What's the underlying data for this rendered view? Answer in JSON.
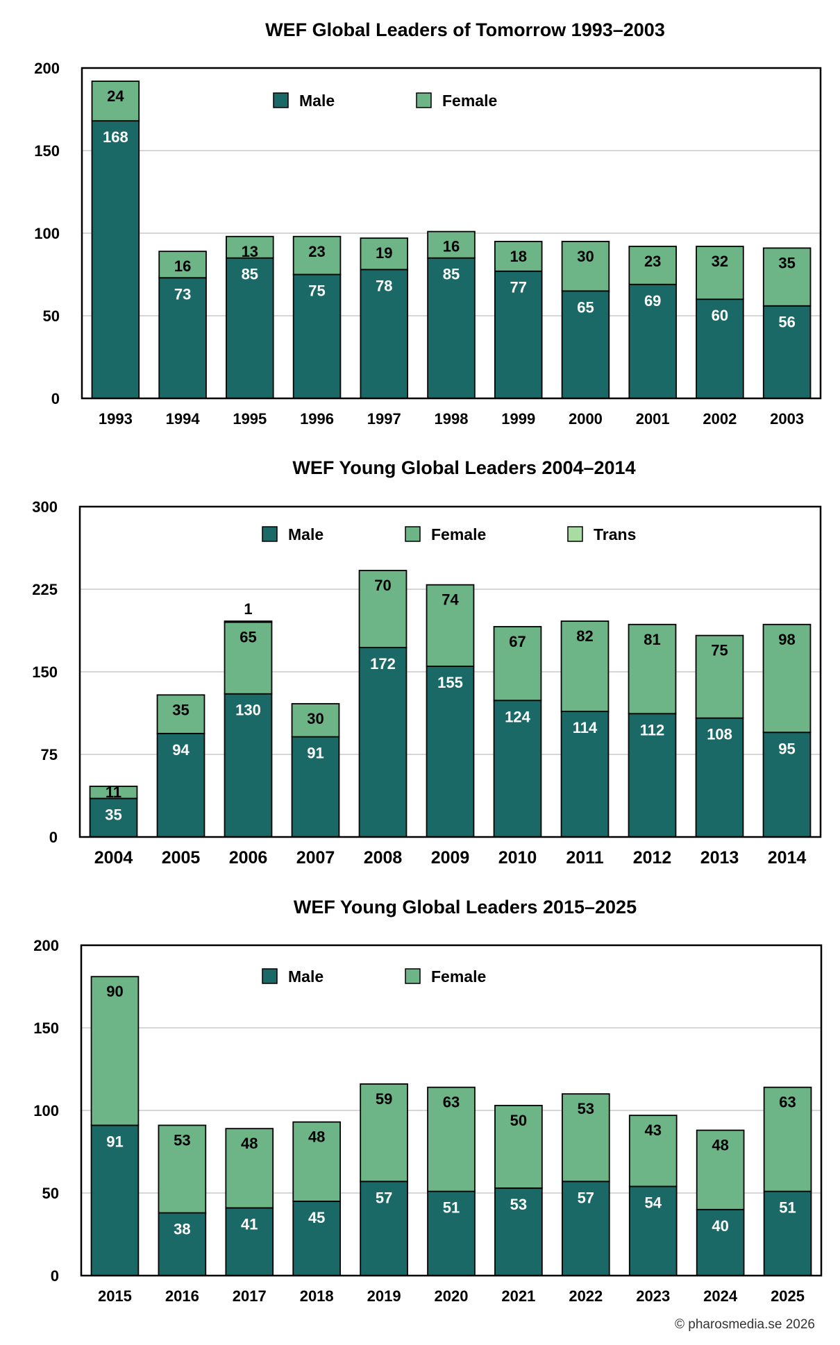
{
  "colors": {
    "male": "#1a6966",
    "female": "#6db586",
    "trans": "#a9dca3",
    "grid": "#c8c8c8",
    "frame": "#000000"
  },
  "chart_data": [
    {
      "type": "bar",
      "stacked": true,
      "title": "WEF Global Leaders of Tomorrow 1993–2003",
      "categories": [
        "1993",
        "1994",
        "1995",
        "1996",
        "1997",
        "1998",
        "1999",
        "2000",
        "2001",
        "2002",
        "2003"
      ],
      "series": [
        {
          "name": "Male",
          "color_key": "male",
          "values": [
            168,
            73,
            85,
            75,
            78,
            85,
            77,
            65,
            69,
            60,
            56
          ]
        },
        {
          "name": "Female",
          "color_key": "female",
          "values": [
            24,
            16,
            13,
            23,
            19,
            16,
            18,
            30,
            23,
            32,
            35
          ]
        }
      ],
      "ylim": [
        0,
        200
      ],
      "yticks": [
        0,
        50,
        100,
        150,
        200
      ],
      "grid": true,
      "legend": "top-center"
    },
    {
      "type": "bar",
      "stacked": true,
      "title": "WEF Young Global Leaders 2004–2014",
      "categories": [
        "2004",
        "2005",
        "2006",
        "2007",
        "2008",
        "2009",
        "2010",
        "2011",
        "2012",
        "2013",
        "2014"
      ],
      "series": [
        {
          "name": "Male",
          "color_key": "male",
          "values": [
            35,
            94,
            130,
            91,
            172,
            155,
            124,
            114,
            112,
            108,
            95
          ]
        },
        {
          "name": "Female",
          "color_key": "female",
          "values": [
            11,
            35,
            65,
            30,
            70,
            74,
            67,
            82,
            81,
            75,
            98
          ]
        },
        {
          "name": "Trans",
          "color_key": "trans",
          "values": [
            0,
            0,
            1,
            0,
            0,
            0,
            0,
            0,
            0,
            0,
            0
          ]
        }
      ],
      "ylim": [
        0,
        300
      ],
      "yticks": [
        0,
        75,
        150,
        225,
        300
      ],
      "grid": true,
      "legend": "top-center"
    },
    {
      "type": "bar",
      "stacked": true,
      "title": "WEF Young Global Leaders 2015–2025",
      "categories": [
        "2015",
        "2016",
        "2017",
        "2018",
        "2019",
        "2020",
        "2021",
        "2022",
        "2023",
        "2024",
        "2025"
      ],
      "series": [
        {
          "name": "Male",
          "color_key": "male",
          "values": [
            91,
            38,
            41,
            45,
            57,
            51,
            53,
            57,
            54,
            40,
            51
          ]
        },
        {
          "name": "Female",
          "color_key": "female",
          "values": [
            90,
            53,
            48,
            48,
            59,
            63,
            50,
            53,
            43,
            48,
            63
          ]
        }
      ],
      "ylim": [
        0,
        200
      ],
      "yticks": [
        0,
        50,
        100,
        150,
        200
      ],
      "grid": true,
      "legend": "top-center"
    }
  ],
  "credit": "© pharosmedia.se 2026"
}
